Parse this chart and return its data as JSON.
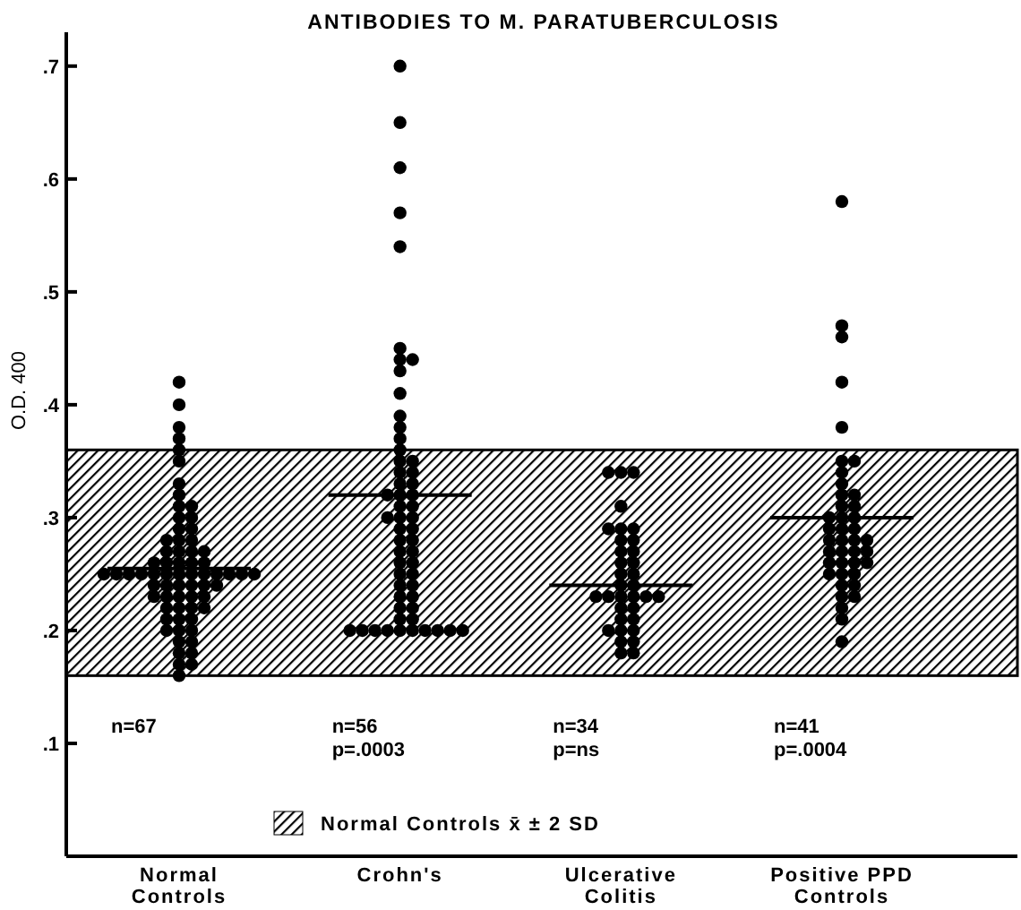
{
  "chart_data": {
    "type": "scatter",
    "title": "ANTIBODIES TO M. PARATUBERCULOSIS",
    "ylabel": "O.D. 400",
    "categories": [
      "Normal\nControls",
      "Crohn's",
      "Ulcerative\nColitis",
      "Positive PPD\nControls"
    ],
    "ylim": [
      0,
      0.73
    ],
    "yticks": [
      {
        "value": 0.1,
        "label": ".1"
      },
      {
        "value": 0.2,
        "label": ".2"
      },
      {
        "value": 0.3,
        "label": ".3"
      },
      {
        "value": 0.4,
        "label": ".4"
      },
      {
        "value": 0.5,
        "label": ".5"
      },
      {
        "value": 0.6,
        "label": ".6"
      },
      {
        "value": 0.7,
        "label": ".7"
      }
    ],
    "grid": false,
    "marker": "circle",
    "legend": "bottom",
    "ref_lines": [
      {
        "axis": "y",
        "value": 0.255,
        "color": "#000000"
      },
      {
        "axis": "y",
        "value": 0.32,
        "color": "#000000"
      },
      {
        "axis": "y",
        "value": 0.24,
        "color": "#000000"
      },
      {
        "axis": "y",
        "value": 0.3,
        "color": "#000000"
      }
    ],
    "bands": [
      {
        "axis": "y",
        "from": 0.16,
        "to": 0.36,
        "label": "Normal Controls x̄ ± 2 SD",
        "color": "#000000"
      }
    ],
    "series": [
      {
        "color": "#000000",
        "x": [
          "Normal\nControls",
          "Normal\nControls",
          "Normal\nControls",
          "Normal\nControls",
          "Normal\nControls",
          "Normal\nControls",
          "Normal\nControls",
          "Normal\nControls",
          "Normal\nControls",
          "Normal\nControls",
          "Normal\nControls",
          "Normal\nControls",
          "Normal\nControls",
          "Normal\nControls",
          "Normal\nControls",
          "Normal\nControls",
          "Normal\nControls",
          "Normal\nControls",
          "Normal\nControls",
          "Normal\nControls",
          "Normal\nControls",
          "Normal\nControls",
          "Normal\nControls",
          "Normal\nControls",
          "Normal\nControls",
          "Normal\nControls",
          "Normal\nControls",
          "Normal\nControls",
          "Normal\nControls",
          "Normal\nControls",
          "Normal\nControls",
          "Normal\nControls",
          "Normal\nControls",
          "Normal\nControls",
          "Normal\nControls",
          "Normal\nControls",
          "Normal\nControls",
          "Normal\nControls",
          "Normal\nControls",
          "Normal\nControls",
          "Normal\nControls",
          "Normal\nControls",
          "Normal\nControls",
          "Normal\nControls",
          "Normal\nControls",
          "Normal\nControls",
          "Normal\nControls",
          "Normal\nControls",
          "Normal\nControls",
          "Normal\nControls",
          "Normal\nControls",
          "Normal\nControls",
          "Normal\nControls",
          "Normal\nControls",
          "Normal\nControls",
          "Normal\nControls",
          "Normal\nControls",
          "Normal\nControls",
          "Normal\nControls",
          "Normal\nControls",
          "Normal\nControls",
          "Normal\nControls",
          "Normal\nControls",
          "Normal\nControls",
          "Normal\nControls",
          "Normal\nControls",
          "Normal\nControls"
        ],
        "values": [
          0.42,
          0.4,
          0.38,
          0.37,
          0.36,
          0.35,
          0.33,
          0.32,
          0.31,
          0.31,
          0.3,
          0.3,
          0.29,
          0.29,
          0.28,
          0.28,
          0.28,
          0.27,
          0.27,
          0.27,
          0.27,
          0.26,
          0.26,
          0.26,
          0.26,
          0.26,
          0.25,
          0.25,
          0.25,
          0.25,
          0.25,
          0.25,
          0.25,
          0.25,
          0.25,
          0.25,
          0.25,
          0.25,
          0.25,
          0.24,
          0.24,
          0.24,
          0.24,
          0.24,
          0.24,
          0.23,
          0.23,
          0.23,
          0.23,
          0.23,
          0.22,
          0.22,
          0.22,
          0.22,
          0.21,
          0.21,
          0.21,
          0.2,
          0.2,
          0.2,
          0.19,
          0.19,
          0.18,
          0.18,
          0.17,
          0.17,
          0.16
        ]
      },
      {
        "color": "#000000",
        "x": [
          "Crohn's",
          "Crohn's",
          "Crohn's",
          "Crohn's",
          "Crohn's",
          "Crohn's",
          "Crohn's",
          "Crohn's",
          "Crohn's",
          "Crohn's",
          "Crohn's",
          "Crohn's",
          "Crohn's",
          "Crohn's",
          "Crohn's",
          "Crohn's",
          "Crohn's",
          "Crohn's",
          "Crohn's",
          "Crohn's",
          "Crohn's",
          "Crohn's",
          "Crohn's",
          "Crohn's",
          "Crohn's",
          "Crohn's",
          "Crohn's",
          "Crohn's",
          "Crohn's",
          "Crohn's",
          "Crohn's",
          "Crohn's",
          "Crohn's",
          "Crohn's",
          "Crohn's",
          "Crohn's",
          "Crohn's",
          "Crohn's",
          "Crohn's",
          "Crohn's",
          "Crohn's",
          "Crohn's",
          "Crohn's",
          "Crohn's",
          "Crohn's",
          "Crohn's",
          "Crohn's",
          "Crohn's",
          "Crohn's",
          "Crohn's",
          "Crohn's",
          "Crohn's",
          "Crohn's",
          "Crohn's",
          "Crohn's",
          "Crohn's"
        ],
        "values": [
          0.7,
          0.65,
          0.61,
          0.57,
          0.54,
          0.45,
          0.44,
          0.44,
          0.43,
          0.41,
          0.39,
          0.38,
          0.37,
          0.36,
          0.35,
          0.35,
          0.34,
          0.34,
          0.33,
          0.33,
          0.32,
          0.32,
          0.32,
          0.31,
          0.31,
          0.3,
          0.3,
          0.3,
          0.29,
          0.29,
          0.28,
          0.28,
          0.27,
          0.27,
          0.26,
          0.26,
          0.25,
          0.25,
          0.24,
          0.24,
          0.23,
          0.23,
          0.22,
          0.22,
          0.21,
          0.21,
          0.2,
          0.2,
          0.2,
          0.2,
          0.2,
          0.2,
          0.2,
          0.2,
          0.2,
          0.2
        ]
      },
      {
        "color": "#000000",
        "x": [
          "Ulcerative\nColitis",
          "Ulcerative\nColitis",
          "Ulcerative\nColitis",
          "Ulcerative\nColitis",
          "Ulcerative\nColitis",
          "Ulcerative\nColitis",
          "Ulcerative\nColitis",
          "Ulcerative\nColitis",
          "Ulcerative\nColitis",
          "Ulcerative\nColitis",
          "Ulcerative\nColitis",
          "Ulcerative\nColitis",
          "Ulcerative\nColitis",
          "Ulcerative\nColitis",
          "Ulcerative\nColitis",
          "Ulcerative\nColitis",
          "Ulcerative\nColitis",
          "Ulcerative\nColitis",
          "Ulcerative\nColitis",
          "Ulcerative\nColitis",
          "Ulcerative\nColitis",
          "Ulcerative\nColitis",
          "Ulcerative\nColitis",
          "Ulcerative\nColitis",
          "Ulcerative\nColitis",
          "Ulcerative\nColitis",
          "Ulcerative\nColitis",
          "Ulcerative\nColitis",
          "Ulcerative\nColitis",
          "Ulcerative\nColitis",
          "Ulcerative\nColitis",
          "Ulcerative\nColitis",
          "Ulcerative\nColitis",
          "Ulcerative\nColitis"
        ],
        "values": [
          0.34,
          0.34,
          0.34,
          0.31,
          0.29,
          0.29,
          0.29,
          0.28,
          0.28,
          0.27,
          0.27,
          0.26,
          0.26,
          0.25,
          0.25,
          0.24,
          0.24,
          0.23,
          0.23,
          0.23,
          0.23,
          0.23,
          0.23,
          0.22,
          0.22,
          0.21,
          0.21,
          0.2,
          0.2,
          0.2,
          0.19,
          0.19,
          0.18,
          0.18
        ]
      },
      {
        "color": "#000000",
        "x": [
          "Positive PPD\nControls",
          "Positive PPD\nControls",
          "Positive PPD\nControls",
          "Positive PPD\nControls",
          "Positive PPD\nControls",
          "Positive PPD\nControls",
          "Positive PPD\nControls",
          "Positive PPD\nControls",
          "Positive PPD\nControls",
          "Positive PPD\nControls",
          "Positive PPD\nControls",
          "Positive PPD\nControls",
          "Positive PPD\nControls",
          "Positive PPD\nControls",
          "Positive PPD\nControls",
          "Positive PPD\nControls",
          "Positive PPD\nControls",
          "Positive PPD\nControls",
          "Positive PPD\nControls",
          "Positive PPD\nControls",
          "Positive PPD\nControls",
          "Positive PPD\nControls",
          "Positive PPD\nControls",
          "Positive PPD\nControls",
          "Positive PPD\nControls",
          "Positive PPD\nControls",
          "Positive PPD\nControls",
          "Positive PPD\nControls",
          "Positive PPD\nControls",
          "Positive PPD\nControls",
          "Positive PPD\nControls",
          "Positive PPD\nControls",
          "Positive PPD\nControls",
          "Positive PPD\nControls",
          "Positive PPD\nControls",
          "Positive PPD\nControls",
          "Positive PPD\nControls",
          "Positive PPD\nControls",
          "Positive PPD\nControls",
          "Positive PPD\nControls",
          "Positive PPD\nControls"
        ],
        "values": [
          0.58,
          0.47,
          0.46,
          0.42,
          0.38,
          0.35,
          0.35,
          0.34,
          0.33,
          0.32,
          0.32,
          0.31,
          0.31,
          0.3,
          0.3,
          0.3,
          0.29,
          0.29,
          0.29,
          0.28,
          0.28,
          0.28,
          0.28,
          0.27,
          0.27,
          0.27,
          0.27,
          0.26,
          0.26,
          0.26,
          0.26,
          0.25,
          0.25,
          0.25,
          0.24,
          0.24,
          0.23,
          0.23,
          0.22,
          0.21,
          0.19
        ]
      }
    ],
    "annotations": [
      "n=67",
      "n=56\np=.0003",
      "n=34\np=ns",
      "n=41\np=.0004"
    ]
  }
}
